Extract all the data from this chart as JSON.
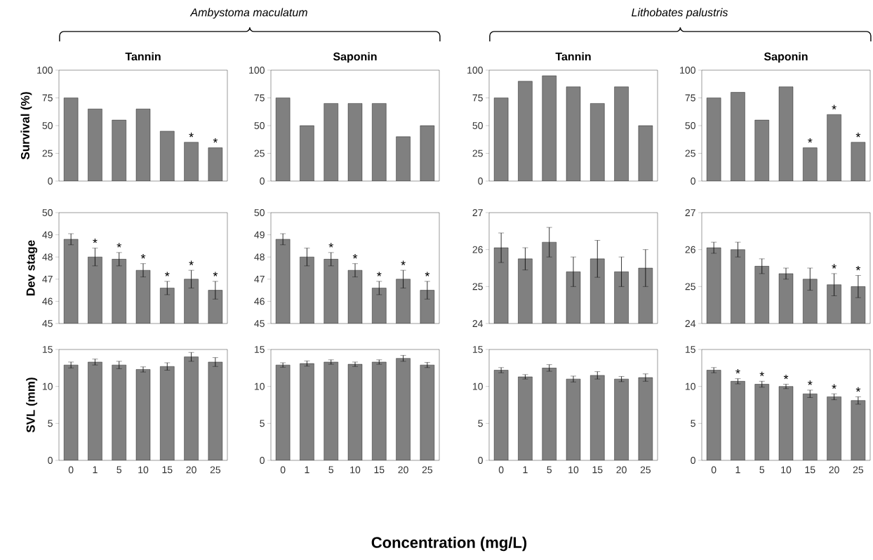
{
  "chart_data": [
    {
      "type": "bar",
      "title": "Tannin",
      "ylabel": "Survival (%)",
      "annotations": [
        "Ambystoma maculatum"
      ],
      "categories": [
        "0",
        "1",
        "5",
        "10",
        "15",
        "20",
        "25"
      ],
      "values": [
        75,
        65,
        55,
        65,
        45,
        35,
        30
      ],
      "value_labels": [
        null,
        null,
        null,
        null,
        null,
        "*",
        "*"
      ],
      "color": "#808080",
      "ylim": [
        0,
        100
      ],
      "yticks": [
        0,
        25,
        50,
        75,
        100
      ],
      "tick_labels": "y"
    },
    {
      "type": "bar",
      "title": "Saponin",
      "categories": [
        "0",
        "1",
        "5",
        "10",
        "15",
        "20",
        "25"
      ],
      "values": [
        75,
        50,
        70,
        70,
        70,
        40,
        50
      ],
      "color": "#808080",
      "ylim": [
        0,
        100
      ],
      "yticks": [
        0,
        25,
        50,
        75,
        100
      ],
      "tick_labels": "y"
    },
    {
      "type": "bar",
      "title": "Tannin",
      "annotations": [
        "Lithobates palustris"
      ],
      "categories": [
        "0",
        "1",
        "5",
        "10",
        "15",
        "20",
        "25"
      ],
      "values": [
        75,
        90,
        95,
        85,
        70,
        85,
        50
      ],
      "color": "#808080",
      "ylim": [
        0,
        100
      ],
      "yticks": [
        0,
        25,
        50,
        75,
        100
      ],
      "tick_labels": "y"
    },
    {
      "type": "bar",
      "title": "Saponin",
      "categories": [
        "0",
        "1",
        "5",
        "10",
        "15",
        "20",
        "25"
      ],
      "values": [
        75,
        80,
        55,
        85,
        30,
        60,
        35
      ],
      "value_labels": [
        null,
        null,
        null,
        null,
        "*",
        "*",
        "*"
      ],
      "color": "#808080",
      "ylim": [
        0,
        100
      ],
      "yticks": [
        0,
        25,
        50,
        75,
        100
      ],
      "tick_labels": "y"
    },
    {
      "type": "bar",
      "ylabel": "Dev stage",
      "categories": [
        "0",
        "1",
        "5",
        "10",
        "15",
        "20",
        "25"
      ],
      "values": [
        48.8,
        48.0,
        47.9,
        47.4,
        46.6,
        47.0,
        46.5
      ],
      "errors": [
        0.25,
        0.4,
        0.3,
        0.3,
        0.3,
        0.4,
        0.4
      ],
      "value_labels": [
        null,
        "*",
        "*",
        "*",
        "*",
        "*",
        "*"
      ],
      "color": "#808080",
      "ylim": [
        45,
        50
      ],
      "yticks": [
        45,
        46,
        47,
        48,
        49,
        50
      ],
      "tick_labels": "y"
    },
    {
      "type": "bar",
      "categories": [
        "0",
        "1",
        "5",
        "10",
        "15",
        "20",
        "25"
      ],
      "values": [
        48.8,
        48.0,
        47.9,
        47.4,
        46.6,
        47.0,
        46.5
      ],
      "errors": [
        0.25,
        0.4,
        0.3,
        0.3,
        0.3,
        0.4,
        0.4
      ],
      "value_labels": [
        null,
        null,
        "*",
        "*",
        "*",
        "*",
        "*"
      ],
      "color": "#808080",
      "ylim": [
        45,
        50
      ],
      "yticks": [
        45,
        46,
        47,
        48,
        49,
        50
      ],
      "tick_labels": "y"
    },
    {
      "type": "bar",
      "categories": [
        "0",
        "1",
        "5",
        "10",
        "15",
        "20",
        "25"
      ],
      "values": [
        26.05,
        25.75,
        26.2,
        25.4,
        25.75,
        25.4,
        25.5
      ],
      "errors": [
        0.4,
        0.3,
        0.4,
        0.4,
        0.5,
        0.4,
        0.5
      ],
      "color": "#808080",
      "ylim": [
        24,
        27
      ],
      "yticks": [
        24,
        25,
        26,
        27
      ],
      "tick_labels": "y"
    },
    {
      "type": "bar",
      "categories": [
        "0",
        "1",
        "5",
        "10",
        "15",
        "20",
        "25"
      ],
      "values": [
        26.05,
        26.0,
        25.55,
        25.35,
        25.2,
        25.05,
        25.0
      ],
      "errors": [
        0.15,
        0.2,
        0.2,
        0.15,
        0.3,
        0.3,
        0.3
      ],
      "value_labels": [
        null,
        null,
        null,
        null,
        null,
        "*",
        "*"
      ],
      "color": "#808080",
      "ylim": [
        24,
        27
      ],
      "yticks": [
        24,
        25,
        26,
        27
      ],
      "tick_labels": "y"
    },
    {
      "type": "bar",
      "ylabel": "SVL (mm)",
      "categories": [
        "0",
        "1",
        "5",
        "10",
        "15",
        "20",
        "25"
      ],
      "values": [
        12.9,
        13.3,
        12.9,
        12.3,
        12.7,
        14.0,
        13.3
      ],
      "errors": [
        0.4,
        0.4,
        0.5,
        0.35,
        0.5,
        0.6,
        0.6
      ],
      "color": "#808080",
      "ylim": [
        0,
        15
      ],
      "yticks": [
        0,
        5,
        10,
        15
      ]
    },
    {
      "type": "bar",
      "annotations": [
        "Concentration (mg/L)"
      ],
      "categories": [
        "0",
        "1",
        "5",
        "10",
        "15",
        "20",
        "25"
      ],
      "values": [
        12.9,
        13.1,
        13.3,
        13.0,
        13.3,
        13.8,
        12.9
      ],
      "errors": [
        0.3,
        0.35,
        0.3,
        0.3,
        0.3,
        0.4,
        0.35
      ],
      "color": "#808080",
      "ylim": [
        0,
        15
      ],
      "yticks": [
        0,
        5,
        10,
        15
      ]
    },
    {
      "type": "bar",
      "categories": [
        "0",
        "1",
        "5",
        "10",
        "15",
        "20",
        "25"
      ],
      "values": [
        12.2,
        11.3,
        12.5,
        11.0,
        11.5,
        11.0,
        11.2
      ],
      "errors": [
        0.35,
        0.3,
        0.45,
        0.4,
        0.5,
        0.35,
        0.5
      ],
      "color": "#808080",
      "ylim": [
        0,
        15
      ],
      "yticks": [
        0,
        5,
        10,
        15
      ]
    },
    {
      "type": "bar",
      "categories": [
        "0",
        "1",
        "5",
        "10",
        "15",
        "20",
        "25"
      ],
      "values": [
        12.2,
        10.7,
        10.3,
        10.0,
        9.0,
        8.6,
        8.1
      ],
      "errors": [
        0.35,
        0.35,
        0.4,
        0.3,
        0.5,
        0.4,
        0.5
      ],
      "value_labels": [
        null,
        "*",
        "*",
        "*",
        "*",
        "*",
        "*"
      ],
      "color": "#808080",
      "ylim": [
        0,
        15
      ],
      "yticks": [
        0,
        5,
        10,
        15
      ]
    }
  ]
}
